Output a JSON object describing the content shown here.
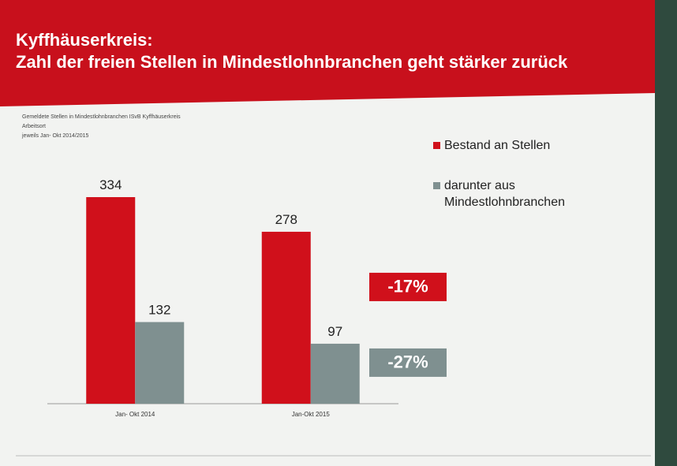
{
  "chart_data": {
    "type": "bar",
    "title": [
      "Kyffhäuserkreis:",
      "Zahl der freien Stellen in Mindestlohnbranchen geht stärker zurück"
    ],
    "subtitle": [
      "Gemeldete Stellen in Mindestlohnbranchen ISvB Kyffhäuserkreis",
      "Arbeitsort",
      "jeweils Jan- Okt 2014/2015"
    ],
    "categories": [
      "Jan- Okt 2014",
      "Jan-Okt 2015"
    ],
    "series": [
      {
        "name": "Bestand an Stellen",
        "color": "#d0101b",
        "values": [
          334,
          278
        ]
      },
      {
        "name": "darunter aus Mindestlohnbranchen",
        "color": "#7f9090",
        "values": [
          132,
          97
        ]
      }
    ],
    "annotations": [
      "-17%",
      "-27%"
    ]
  }
}
